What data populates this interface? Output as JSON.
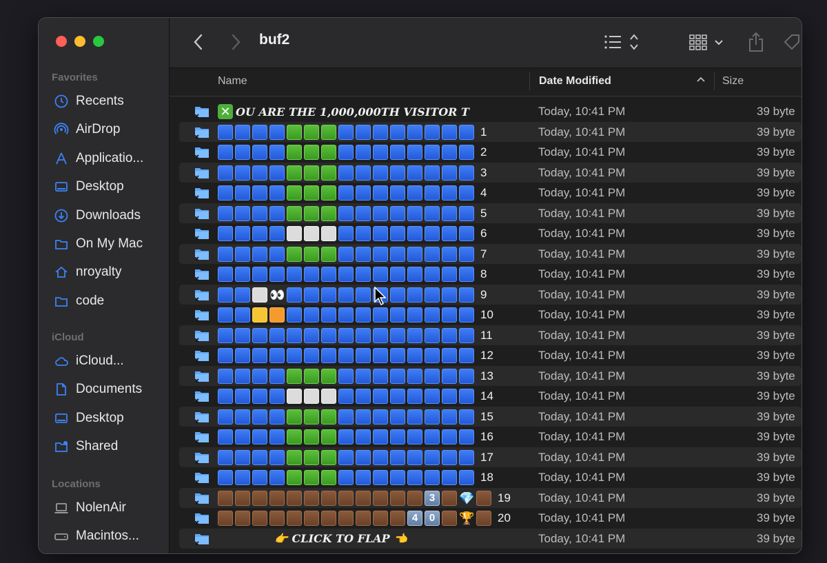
{
  "window": {
    "title": "buf2"
  },
  "sidebar": {
    "sections": [
      {
        "title": "Favorites",
        "items": [
          {
            "label": "Recents",
            "icon": "clock-icon"
          },
          {
            "label": "AirDrop",
            "icon": "airdrop-icon"
          },
          {
            "label": "Applicatio...",
            "icon": "applications-icon"
          },
          {
            "label": "Desktop",
            "icon": "desktop-icon"
          },
          {
            "label": "Downloads",
            "icon": "downloads-icon"
          },
          {
            "label": "On My Mac",
            "icon": "folder-icon"
          },
          {
            "label": "nroyalty",
            "icon": "home-icon"
          },
          {
            "label": "code",
            "icon": "folder-icon"
          }
        ]
      },
      {
        "title": "iCloud",
        "items": [
          {
            "label": "iCloud...",
            "icon": "cloud-icon"
          },
          {
            "label": "Documents",
            "icon": "document-icon"
          },
          {
            "label": "Desktop",
            "icon": "desktop-icon"
          },
          {
            "label": "Shared",
            "icon": "shared-folder-icon"
          }
        ]
      },
      {
        "title": "Locations",
        "items": [
          {
            "label": "NolenAir",
            "icon": "laptop-icon"
          },
          {
            "label": "Macintos...",
            "icon": "drive-icon"
          }
        ]
      }
    ]
  },
  "columns": {
    "name": "Name",
    "date": "Date Modified",
    "size": "Size"
  },
  "colors": {
    "blue": "#2f6be6",
    "green": "#4caf3a",
    "brown": "#7a4b30",
    "window": "#1e1e1e"
  },
  "rows": [
    {
      "heading": "OU ARE THE 1,000,000TH VISITOR T",
      "date": "Today, 10:41 PM",
      "size": "39 byte"
    },
    {
      "cells": "BBBBGGGBBBBBBBB",
      "num": "1",
      "date": "Today, 10:41 PM",
      "size": "39 byte"
    },
    {
      "cells": "BBBBGGGBBBBBBBB",
      "num": "2",
      "date": "Today, 10:41 PM",
      "size": "39 byte"
    },
    {
      "cells": "BBBBGGGBBBBBBBB",
      "num": "3",
      "date": "Today, 10:41 PM",
      "size": "39 byte"
    },
    {
      "cells": "BBBBGGGBBBBBBBB",
      "num": "4",
      "date": "Today, 10:41 PM",
      "size": "39 byte"
    },
    {
      "cells": "BBBBGGGBBBBBBBB",
      "num": "5",
      "date": "Today, 10:41 PM",
      "size": "39 byte"
    },
    {
      "cells": "BBBBWWWBBBBBBBB",
      "num": "6",
      "date": "Today, 10:41 PM",
      "size": "39 byte"
    },
    {
      "cells": "BBBBGGGBBBBBBBB",
      "num": "7",
      "date": "Today, 10:41 PM",
      "size": "39 byte"
    },
    {
      "cells": "BBBBBBBBBBBBBBB",
      "num": "8",
      "date": "Today, 10:41 PM",
      "size": "39 byte"
    },
    {
      "cells": "BBWEBBBBBBBBBBB",
      "num": "9",
      "date": "Today, 10:41 PM",
      "size": "39 byte"
    },
    {
      "cells": "BBYOBBBBBBBBBBB",
      "num": "10",
      "date": "Today, 10:41 PM",
      "size": "39 byte"
    },
    {
      "cells": "BBBBBBBBBBBBBBB",
      "num": "11",
      "date": "Today, 10:41 PM",
      "size": "39 byte"
    },
    {
      "cells": "BBBBBBBBBBBBBBB",
      "num": "12",
      "date": "Today, 10:41 PM",
      "size": "39 byte"
    },
    {
      "cells": "BBBBGGGBBBBBBBB",
      "num": "13",
      "date": "Today, 10:41 PM",
      "size": "39 byte"
    },
    {
      "cells": "BBBBWWWBBBBBBBB",
      "num": "14",
      "date": "Today, 10:41 PM",
      "size": "39 byte"
    },
    {
      "cells": "BBBBGGGBBBBBBBB",
      "num": "15",
      "date": "Today, 10:41 PM",
      "size": "39 byte"
    },
    {
      "cells": "BBBBGGGBBBBBBBB",
      "num": "16",
      "date": "Today, 10:41 PM",
      "size": "39 byte"
    },
    {
      "cells": "BBBBGGGBBBBBBBB",
      "num": "17",
      "date": "Today, 10:41 PM",
      "size": "39 byte"
    },
    {
      "cells": "BBBBGGGBBBBBBBB",
      "num": "18",
      "date": "Today, 10:41 PM",
      "size": "39 byte"
    },
    {
      "cells": "NNNNNNNNNNNN3NDN",
      "num": "19",
      "date": "Today, 10:41 PM",
      "size": "39 byte"
    },
    {
      "cells": "NNNNNNNNNNN40NTN",
      "num": "20",
      "date": "Today, 10:41 PM",
      "size": "39 byte"
    },
    {
      "footer": "👉 CLICK TO FLAP 👈",
      "date": "Today, 10:41 PM",
      "size": "39 byte"
    }
  ]
}
